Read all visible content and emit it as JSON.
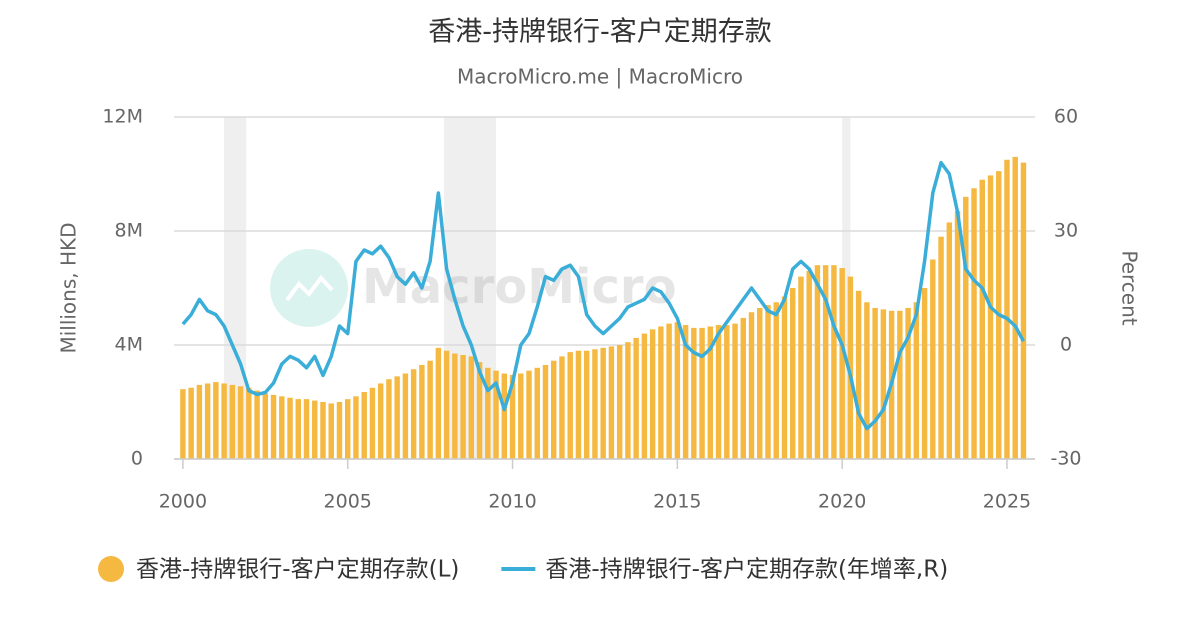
{
  "chart_data": {
    "type": "bar",
    "title": "香港-持牌银行-客户定期存款",
    "subtitle": "MacroMicro.me | MacroMicro",
    "watermark": "MacroMicro",
    "y_label": "Millions, HKD",
    "y2_label": "Percent",
    "x": [
      2000,
      2000.25,
      2000.5,
      2000.75,
      2001,
      2001.25,
      2001.5,
      2001.75,
      2002,
      2002.25,
      2002.5,
      2002.75,
      2003,
      2003.25,
      2003.5,
      2003.75,
      2004,
      2004.25,
      2004.5,
      2004.75,
      2005,
      2005.25,
      2005.5,
      2005.75,
      2006,
      2006.25,
      2006.5,
      2006.75,
      2007,
      2007.25,
      2007.5,
      2007.75,
      2008,
      2008.25,
      2008.5,
      2008.75,
      2009,
      2009.25,
      2009.5,
      2009.75,
      2010,
      2010.25,
      2010.5,
      2010.75,
      2011,
      2011.25,
      2011.5,
      2011.75,
      2012,
      2012.25,
      2012.5,
      2012.75,
      2013,
      2013.25,
      2013.5,
      2013.75,
      2014,
      2014.25,
      2014.5,
      2014.75,
      2015,
      2015.25,
      2015.5,
      2015.75,
      2016,
      2016.25,
      2016.5,
      2016.75,
      2017,
      2017.25,
      2017.5,
      2017.75,
      2018,
      2018.25,
      2018.5,
      2018.75,
      2019,
      2019.25,
      2019.5,
      2019.75,
      2020,
      2020.25,
      2020.5,
      2020.75,
      2021,
      2021.25,
      2021.5,
      2021.75,
      2022,
      2022.25,
      2022.5,
      2022.75,
      2023,
      2023.25,
      2023.5,
      2023.75,
      2024,
      2024.25,
      2024.5,
      2024.75,
      2025,
      2025.25,
      2025.5
    ],
    "series": [
      {
        "name": "香港-持牌银行-客户定期存款(L)",
        "type": "bar",
        "color": "#f5b942",
        "values": [
          2450000,
          2500000,
          2600000,
          2650000,
          2700000,
          2650000,
          2600000,
          2550000,
          2500000,
          2400000,
          2300000,
          2250000,
          2200000,
          2150000,
          2100000,
          2100000,
          2050000,
          2000000,
          1950000,
          2000000,
          2100000,
          2200000,
          2350000,
          2500000,
          2650000,
          2800000,
          2900000,
          3000000,
          3150000,
          3300000,
          3450000,
          3900000,
          3800000,
          3700000,
          3650000,
          3600000,
          3400000,
          3200000,
          3100000,
          3000000,
          2950000,
          3000000,
          3100000,
          3200000,
          3300000,
          3450000,
          3600000,
          3750000,
          3800000,
          3800000,
          3850000,
          3900000,
          3950000,
          4000000,
          4100000,
          4250000,
          4400000,
          4550000,
          4650000,
          4750000,
          4800000,
          4700000,
          4600000,
          4600000,
          4650000,
          4700000,
          4700000,
          4750000,
          4950000,
          5150000,
          5300000,
          5400000,
          5500000,
          5700000,
          6000000,
          6400000,
          6600000,
          6800000,
          6800000,
          6800000,
          6700000,
          6400000,
          5900000,
          5500000,
          5300000,
          5250000,
          5200000,
          5200000,
          5300000,
          5500000,
          6000000,
          7000000,
          7800000,
          8300000,
          8700000,
          9200000,
          9500000,
          9800000,
          9950000,
          10100000,
          10500000,
          10600000,
          10400000
        ]
      },
      {
        "name": "香港-持牌银行-客户定期存款(年增率,R)",
        "type": "line",
        "axis": "y2",
        "color": "#3aaed8",
        "values": [
          5.5,
          8,
          12,
          9,
          8,
          5,
          0,
          -5,
          -12,
          -13,
          -12.5,
          -10,
          -5,
          -3,
          -4,
          -6,
          -3,
          -8,
          -3,
          5,
          3,
          22,
          25,
          24,
          26,
          23,
          18,
          16,
          19,
          15,
          22,
          40,
          20,
          12,
          5,
          0,
          -7,
          -12,
          -10,
          -17,
          -10,
          0,
          3,
          10,
          18,
          17,
          20,
          21,
          18,
          8,
          5,
          3,
          5,
          7,
          10,
          11,
          12,
          15,
          14,
          11,
          7,
          0,
          -2,
          -3,
          -1,
          3,
          6,
          9,
          12,
          15,
          12,
          9,
          8,
          12,
          20,
          22,
          20,
          16,
          12,
          5,
          0,
          -8,
          -18,
          -22,
          -20,
          -17,
          -10,
          -2,
          2,
          8,
          22,
          40,
          48,
          45,
          35,
          20,
          17,
          15,
          10,
          8,
          7,
          5,
          1
        ]
      }
    ],
    "shaded_ranges": [
      [
        2001.25,
        2001.92
      ],
      [
        2007.92,
        2009.5
      ],
      [
        2020.0,
        2020.25
      ]
    ],
    "xlim": [
      1999.73,
      2025.85
    ],
    "xticks": [
      2000,
      2005,
      2010,
      2015,
      2020,
      2025
    ],
    "ylim": [
      0,
      12000000
    ],
    "yticks": [
      {
        "value": 0,
        "label": "0"
      },
      {
        "value": 4000000,
        "label": "4M"
      },
      {
        "value": 8000000,
        "label": "8M"
      },
      {
        "value": 12000000,
        "label": "12M"
      }
    ],
    "y2lim": [
      -30,
      60
    ],
    "y2ticks": [
      -30,
      0,
      30,
      60
    ],
    "grid": true
  }
}
